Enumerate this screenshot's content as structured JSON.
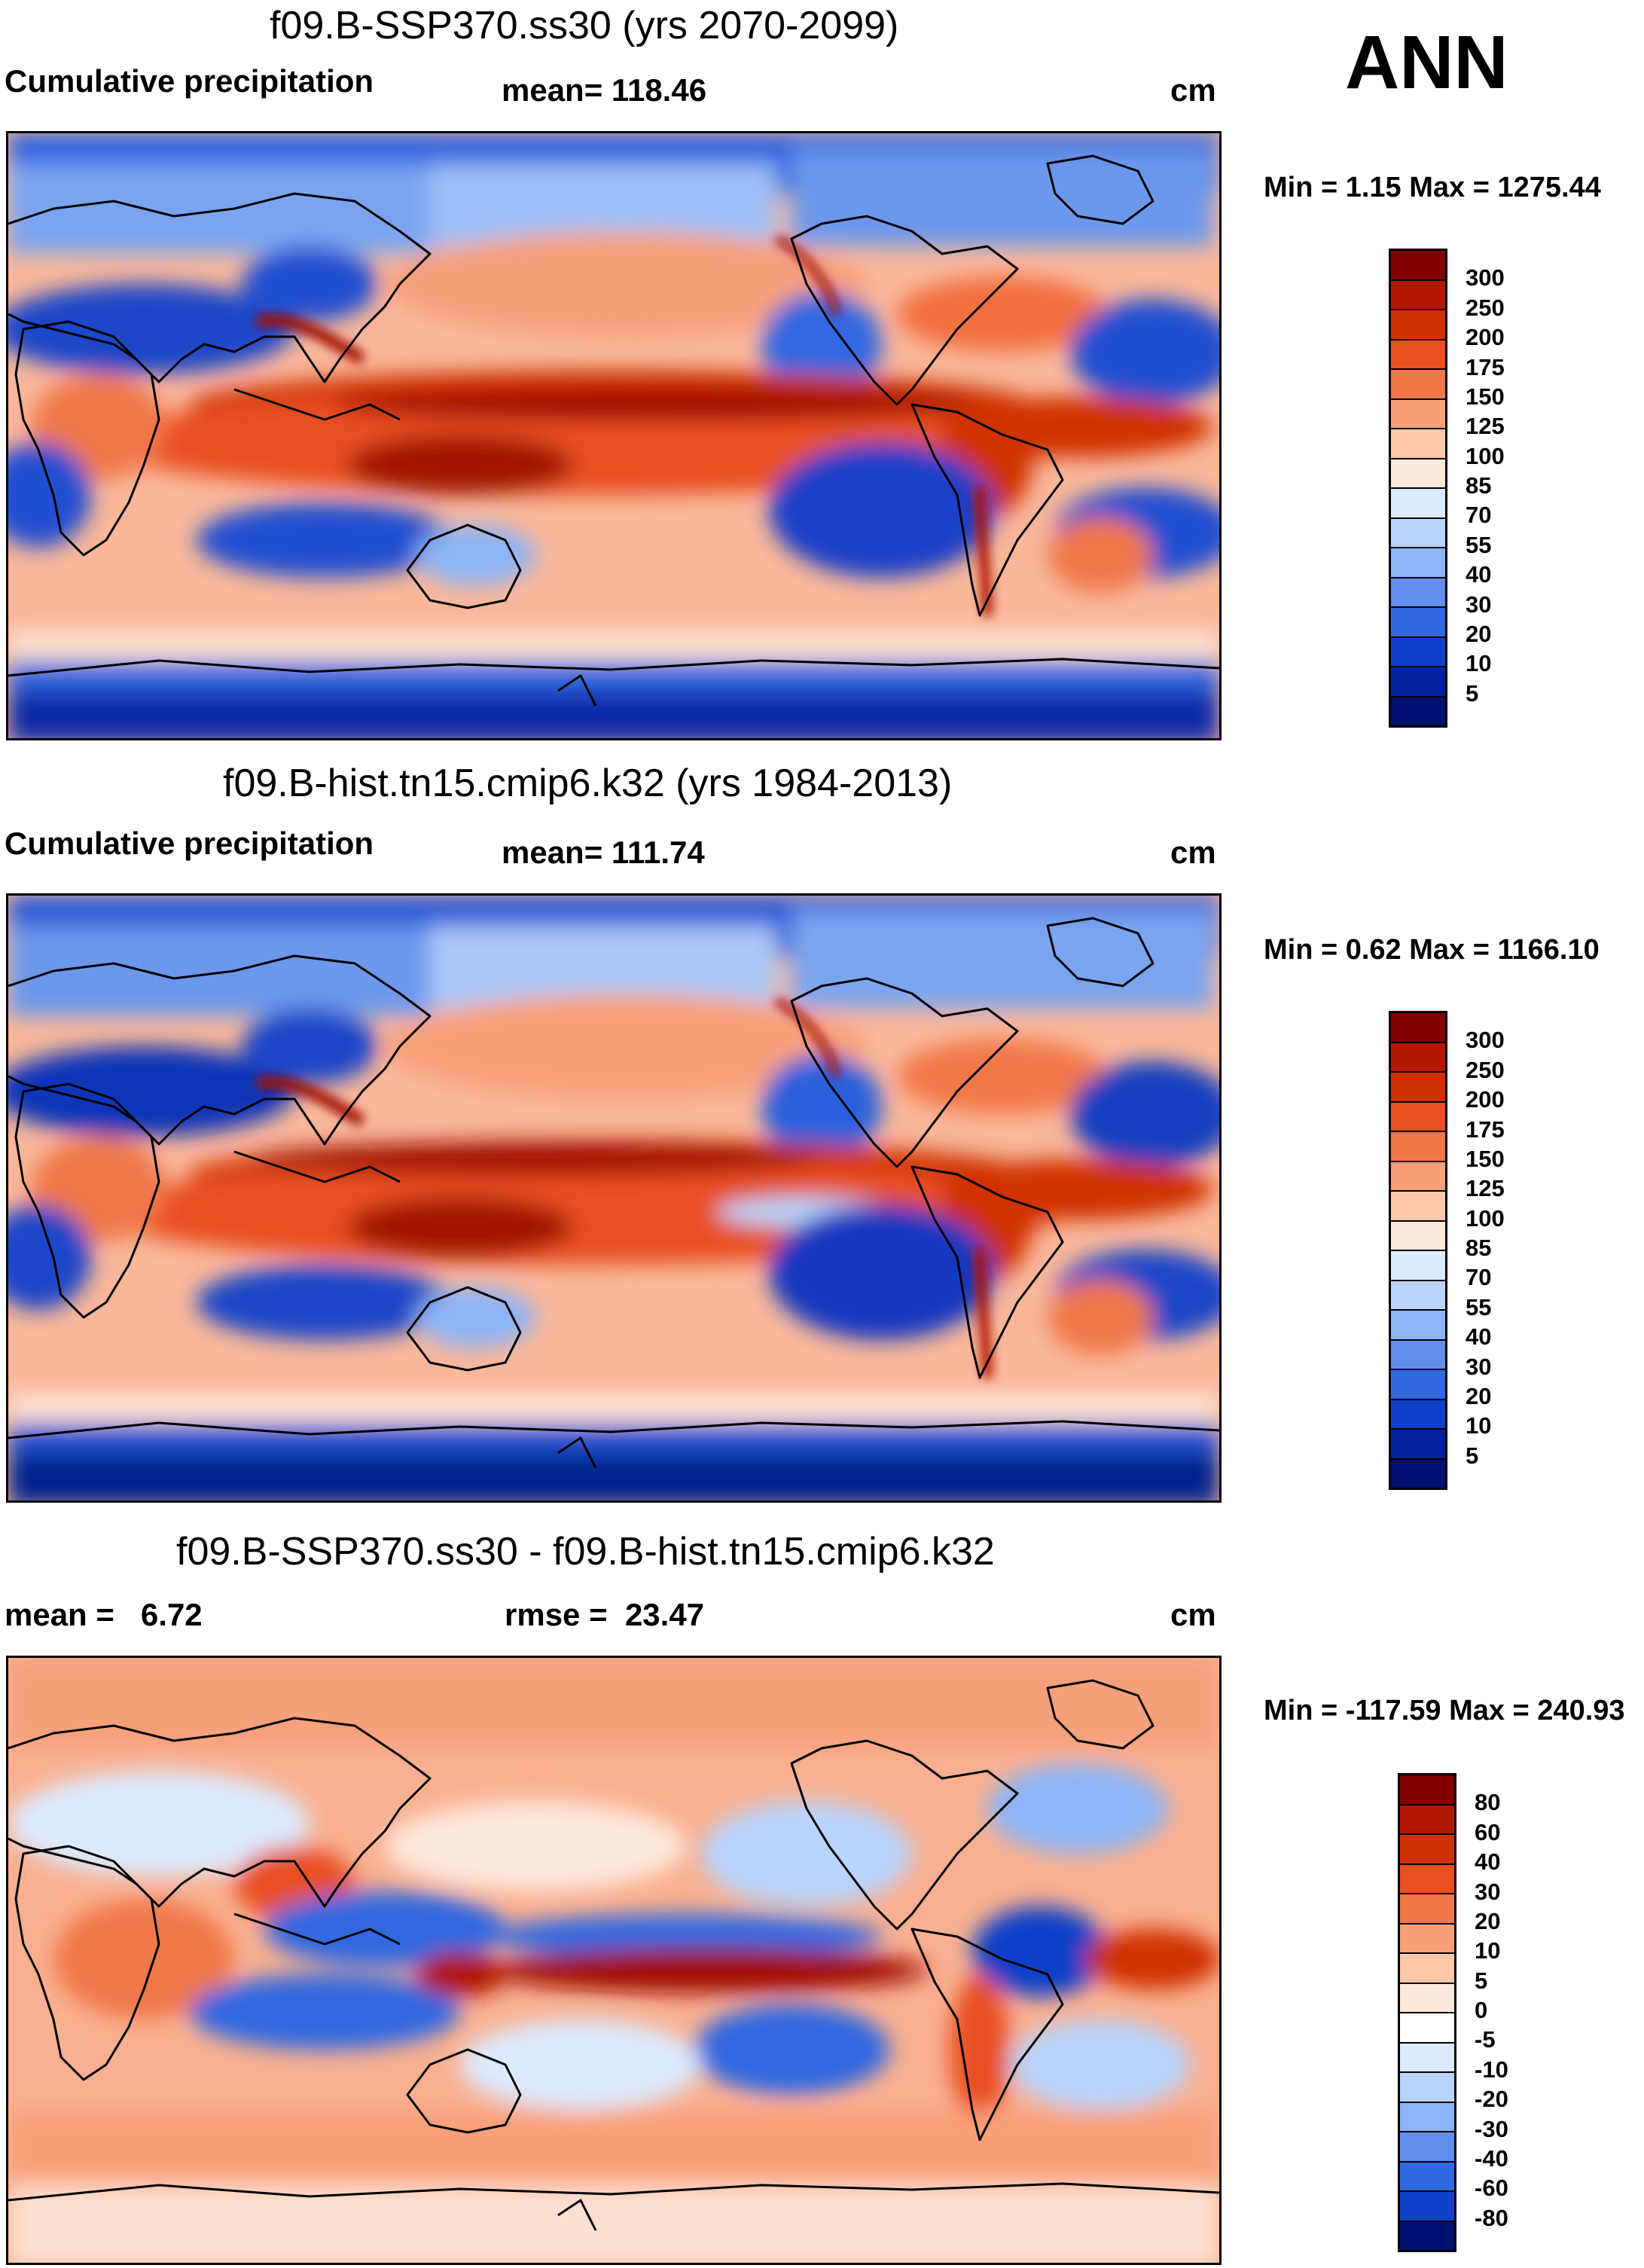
{
  "season": "ANN",
  "panels": [
    {
      "title": "f09.B-SSP370.ss30 (yrs 2070-2099)",
      "left_label": "Cumulative precipitation",
      "center_label": "mean= 118.46",
      "units": "cm",
      "min_max": "Min =   1.15 Max = 1275.44",
      "colorbar_labels": [
        "300",
        "250",
        "200",
        "175",
        "150",
        "125",
        "100",
        "85",
        "70",
        "55",
        "40",
        "30",
        "20",
        "10",
        "5"
      ],
      "colorbar_colors": [
        "#800000",
        "#b01800",
        "#d03000",
        "#e85020",
        "#f07848",
        "#f9a07a",
        "#fcc8a8",
        "#fde8dc",
        "#dceaff",
        "#b8d4fc",
        "#8cb4f6",
        "#6090ee",
        "#3068e0",
        "#1040c8",
        "#05219e",
        "#001070"
      ]
    },
    {
      "title": "f09.B-hist.tn15.cmip6.k32 (yrs 1984-2013)",
      "left_label": "Cumulative precipitation",
      "center_label": "mean= 111.74",
      "units": "cm",
      "min_max": "Min =   0.62 Max = 1166.10",
      "colorbar_labels": [
        "300",
        "250",
        "200",
        "175",
        "150",
        "125",
        "100",
        "85",
        "70",
        "55",
        "40",
        "30",
        "20",
        "10",
        "5"
      ],
      "colorbar_colors": [
        "#800000",
        "#b01800",
        "#d03000",
        "#e85020",
        "#f07848",
        "#f9a07a",
        "#fcc8a8",
        "#fde8dc",
        "#dceaff",
        "#b8d4fc",
        "#8cb4f6",
        "#6090ee",
        "#3068e0",
        "#1040c8",
        "#05219e",
        "#001070"
      ]
    },
    {
      "title": "f09.B-SSP370.ss30 - f09.B-hist.tn15.cmip6.k32",
      "left_label": "mean =   6.72",
      "center_label": "rmse =  23.47",
      "units": "cm",
      "min_max": "Min = -117.59 Max = 240.93",
      "colorbar_labels": [
        "80",
        "60",
        "40",
        "30",
        "20",
        "10",
        "5",
        "0",
        "-5",
        "-10",
        "-20",
        "-30",
        "-40",
        "-60",
        "-80"
      ],
      "colorbar_colors": [
        "#800000",
        "#b01800",
        "#d03000",
        "#e85020",
        "#f07848",
        "#f9a07a",
        "#fcc8a8",
        "#fde8dc",
        "#ffffff",
        "#dceaff",
        "#b8d4fc",
        "#8cb4f6",
        "#6090ee",
        "#3068e0",
        "#1040c8",
        "#001070"
      ]
    }
  ]
}
